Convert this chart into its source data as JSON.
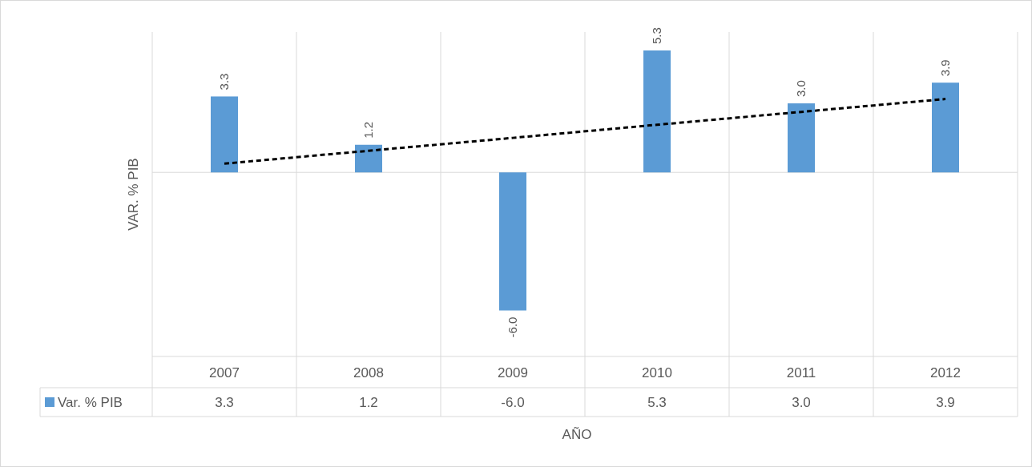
{
  "chart_data": {
    "type": "bar",
    "xlabel": "AÑO",
    "ylabel": "VAR. % PIB",
    "categories": [
      "2007",
      "2008",
      "2009",
      "2010",
      "2011",
      "2012"
    ],
    "ylim": [
      -8,
      6.1
    ],
    "legend": "bottom",
    "series": [
      {
        "name": "Var. % PIB",
        "color": "#5b9bd5",
        "values": [
          3.3,
          1.2,
          -6.0,
          5.3,
          3.0,
          3.9
        ],
        "value_labels": [
          "3.3",
          "1.2",
          "-6.0",
          "5.3",
          "3.0",
          "3.9"
        ]
      },
      {
        "type": "line",
        "values": [
          0.38,
          0.94,
          1.5,
          2.07,
          2.63,
          3.19
        ],
        "color": "#000000",
        "line_style": "dashed"
      }
    ]
  }
}
